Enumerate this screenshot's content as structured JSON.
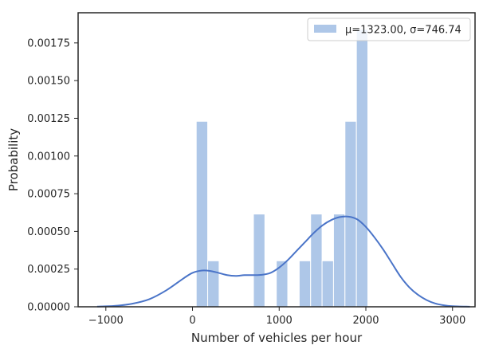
{
  "chart_data": {
    "type": "bar",
    "xlabel": "Number of vehicles per hour",
    "ylabel": "Probability",
    "xlim": [
      -1320,
      3260
    ],
    "ylim": [
      0,
      0.00195
    ],
    "xticks": [
      -1000,
      0,
      1000,
      2000,
      3000
    ],
    "xtick_labels": [
      "−1000",
      "0",
      "1000",
      "2000",
      "3000"
    ],
    "yticks": [
      0,
      0.00025,
      0.0005,
      0.00075,
      0.001,
      0.00125,
      0.0015,
      0.00175
    ],
    "ytick_labels": [
      "0.00000",
      "0.00025",
      "0.00050",
      "0.00075",
      "0.00100",
      "0.00125",
      "0.00150",
      "0.00175"
    ],
    "grid": false,
    "legend_position": "top-right",
    "bar_color": "#aec7e8",
    "kde_color": "#4a74c8",
    "histogram": {
      "bins": [
        {
          "x0": 43,
          "x1": 175,
          "value": 0.00123
        },
        {
          "x0": 175,
          "x1": 307,
          "value": 0.000305
        },
        {
          "x0": 307,
          "x1": 439,
          "value": 0
        },
        {
          "x0": 439,
          "x1": 571,
          "value": 0
        },
        {
          "x0": 571,
          "x1": 703,
          "value": 0
        },
        {
          "x0": 703,
          "x1": 835,
          "value": 0.000615
        },
        {
          "x0": 835,
          "x1": 967,
          "value": 0
        },
        {
          "x0": 967,
          "x1": 1099,
          "value": 0.000305
        },
        {
          "x0": 1099,
          "x1": 1231,
          "value": 0
        },
        {
          "x0": 1231,
          "x1": 1363,
          "value": 0.000305
        },
        {
          "x0": 1363,
          "x1": 1495,
          "value": 0.000615
        },
        {
          "x0": 1495,
          "x1": 1627,
          "value": 0.000305
        },
        {
          "x0": 1627,
          "x1": 1759,
          "value": 0.000615
        },
        {
          "x0": 1759,
          "x1": 1891,
          "value": 0.00123
        },
        {
          "x0": 1891,
          "x1": 2023,
          "value": 0.00184
        }
      ]
    },
    "kde": {
      "x": [
        -1100,
        -900,
        -700,
        -500,
        -300,
        -100,
        0,
        100,
        200,
        300,
        400,
        500,
        600,
        700,
        800,
        900,
        1000,
        1100,
        1200,
        1300,
        1400,
        1500,
        1600,
        1700,
        1800,
        1900,
        2000,
        2100,
        2200,
        2300,
        2400,
        2500,
        2600,
        2700,
        2800,
        2900,
        3000,
        3200
      ],
      "y": [
        1.5e-06,
        6e-06,
        2e-05,
        5e-05,
        0.00011,
        0.00019,
        0.000225,
        0.00024,
        0.000238,
        0.000225,
        0.00021,
        0.000205,
        0.00021,
        0.00021,
        0.000212,
        0.000225,
        0.00026,
        0.00031,
        0.00037,
        0.00043,
        0.00049,
        0.00054,
        0.000575,
        0.000595,
        0.000598,
        0.00058,
        0.00053,
        0.00046,
        0.00038,
        0.00029,
        0.0002,
        0.00013,
        8e-05,
        4.5e-05,
        2.2e-05,
        1e-05,
        4e-06,
        5e-07
      ]
    },
    "legend": [
      {
        "label": "μ=1323.00, σ=746.74",
        "color": "#aec7e8"
      }
    ]
  }
}
